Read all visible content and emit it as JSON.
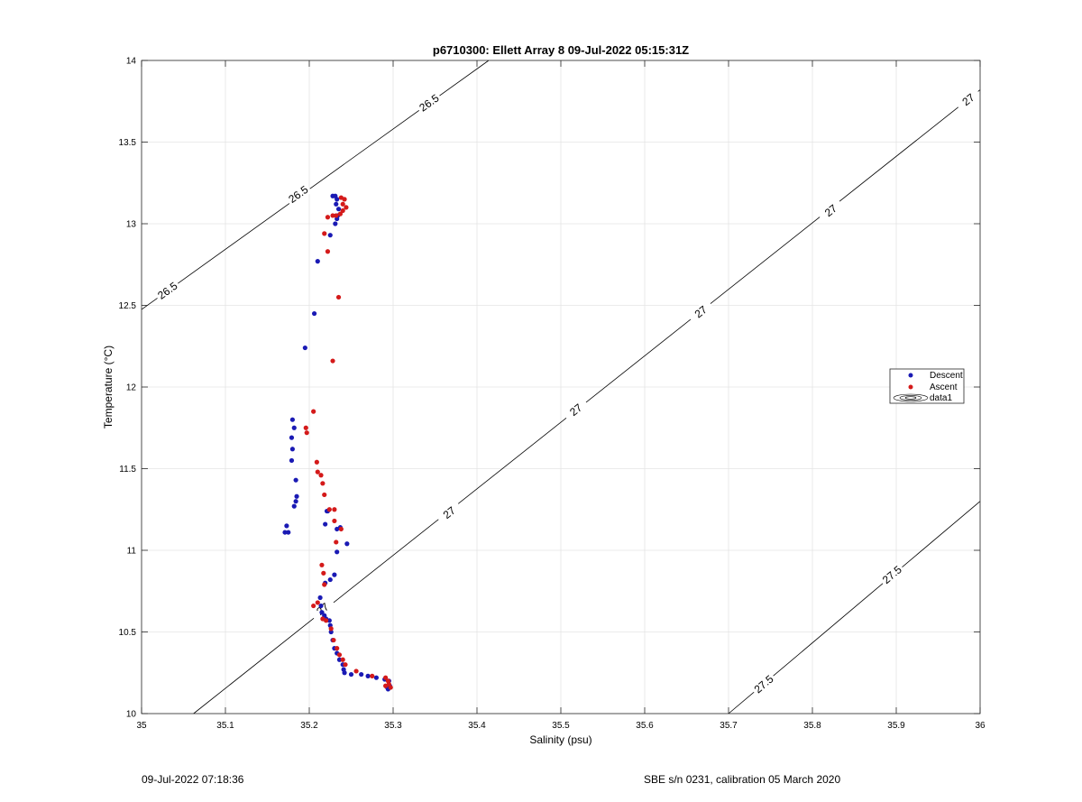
{
  "chart_data": {
    "type": "scatter",
    "title": "p6710300: Ellett Array 8 09-Jul-2022 05:15:31Z",
    "xlabel": "Salinity (psu)",
    "ylabel": "Temperature (°C)",
    "xlim": [
      35,
      36
    ],
    "ylim": [
      10,
      14
    ],
    "xticks": [
      "35",
      "35.1",
      "35.2",
      "35.3",
      "35.4",
      "35.5",
      "35.6",
      "35.7",
      "35.8",
      "35.9",
      "36"
    ],
    "yticks": [
      "10",
      "10.5",
      "11",
      "11.5",
      "12",
      "12.5",
      "13",
      "13.5",
      "14"
    ],
    "grid": true,
    "legend_position": "right",
    "legend": [
      "Descent",
      "Ascent",
      "data1"
    ],
    "colors": {
      "Descent": "#1a1ab4",
      "Ascent": "#d41a1a",
      "contour": "#000000",
      "grid": "#e4e4e4"
    },
    "series": [
      {
        "name": "Descent",
        "points": [
          [
            35.228,
            13.17
          ],
          [
            35.231,
            13.17
          ],
          [
            35.233,
            13.15
          ],
          [
            35.232,
            13.12
          ],
          [
            35.235,
            13.09
          ],
          [
            35.234,
            13.05
          ],
          [
            35.233,
            13.03
          ],
          [
            35.231,
            13.0
          ],
          [
            35.225,
            12.93
          ],
          [
            35.21,
            12.77
          ],
          [
            35.206,
            12.45
          ],
          [
            35.195,
            12.24
          ],
          [
            35.18,
            11.8
          ],
          [
            35.182,
            11.75
          ],
          [
            35.179,
            11.69
          ],
          [
            35.18,
            11.62
          ],
          [
            35.179,
            11.55
          ],
          [
            35.184,
            11.43
          ],
          [
            35.185,
            11.33
          ],
          [
            35.184,
            11.3
          ],
          [
            35.182,
            11.27
          ],
          [
            35.173,
            11.15
          ],
          [
            35.175,
            11.11
          ],
          [
            35.171,
            11.11
          ],
          [
            35.221,
            11.24
          ],
          [
            35.222,
            11.24
          ],
          [
            35.219,
            11.16
          ],
          [
            35.233,
            11.13
          ],
          [
            35.237,
            11.14
          ],
          [
            35.245,
            11.04
          ],
          [
            35.233,
            10.99
          ],
          [
            35.23,
            10.85
          ],
          [
            35.225,
            10.82
          ],
          [
            35.219,
            10.8
          ],
          [
            35.213,
            10.71
          ],
          [
            35.214,
            10.66
          ],
          [
            35.215,
            10.62
          ],
          [
            35.218,
            10.6
          ],
          [
            35.22,
            10.58
          ],
          [
            35.224,
            10.57
          ],
          [
            35.225,
            10.54
          ],
          [
            35.226,
            10.5
          ],
          [
            35.228,
            10.45
          ],
          [
            35.23,
            10.4
          ],
          [
            35.233,
            10.37
          ],
          [
            35.236,
            10.33
          ],
          [
            35.24,
            10.3
          ],
          [
            35.241,
            10.27
          ],
          [
            35.242,
            10.25
          ],
          [
            35.25,
            10.24
          ],
          [
            35.262,
            10.24
          ],
          [
            35.27,
            10.23
          ],
          [
            35.28,
            10.22
          ],
          [
            35.29,
            10.21
          ],
          [
            35.295,
            10.2
          ],
          [
            35.296,
            10.17
          ],
          [
            35.294,
            10.15
          ],
          [
            35.293,
            10.16
          ]
        ]
      },
      {
        "name": "Ascent",
        "points": [
          [
            35.238,
            13.16
          ],
          [
            35.242,
            13.15
          ],
          [
            35.24,
            13.12
          ],
          [
            35.244,
            13.1
          ],
          [
            35.24,
            13.08
          ],
          [
            35.237,
            13.06
          ],
          [
            35.232,
            13.05
          ],
          [
            35.228,
            13.05
          ],
          [
            35.222,
            13.04
          ],
          [
            35.218,
            12.94
          ],
          [
            35.222,
            12.83
          ],
          [
            35.235,
            12.55
          ],
          [
            35.228,
            12.16
          ],
          [
            35.205,
            11.85
          ],
          [
            35.196,
            11.75
          ],
          [
            35.197,
            11.72
          ],
          [
            35.209,
            11.54
          ],
          [
            35.21,
            11.48
          ],
          [
            35.214,
            11.46
          ],
          [
            35.216,
            11.41
          ],
          [
            35.218,
            11.34
          ],
          [
            35.224,
            11.25
          ],
          [
            35.23,
            11.25
          ],
          [
            35.23,
            11.18
          ],
          [
            35.238,
            11.13
          ],
          [
            35.232,
            11.05
          ],
          [
            35.215,
            10.91
          ],
          [
            35.217,
            10.86
          ],
          [
            35.218,
            10.79
          ],
          [
            35.21,
            10.68
          ],
          [
            35.205,
            10.66
          ],
          [
            35.216,
            10.58
          ],
          [
            35.22,
            10.57
          ],
          [
            35.226,
            10.52
          ],
          [
            35.229,
            10.45
          ],
          [
            35.233,
            10.4
          ],
          [
            35.236,
            10.36
          ],
          [
            35.24,
            10.33
          ],
          [
            35.243,
            10.3
          ],
          [
            35.256,
            10.26
          ],
          [
            35.275,
            10.23
          ],
          [
            35.291,
            10.22
          ],
          [
            35.294,
            10.2
          ],
          [
            35.295,
            10.18
          ],
          [
            35.291,
            10.17
          ],
          [
            35.297,
            10.16
          ]
        ]
      }
    ],
    "density_contours": [
      {
        "label": "26.5",
        "x0": 35.0,
        "y0": 12.475,
        "x1": 35.414,
        "y1": 14.0
      },
      {
        "label": "27",
        "x0": 35.062,
        "y0": 10.0,
        "x1": 36.0,
        "y1": 13.82
      },
      {
        "label": "27.5",
        "x0": 35.7,
        "y0": 10.0,
        "x1": 36.0,
        "y1": 11.3
      }
    ],
    "contour_labels": [
      {
        "text": "26.5",
        "x": 35.343,
        "y": 13.74
      },
      {
        "text": "26.5",
        "x": 35.187,
        "y": 13.18
      },
      {
        "text": "26.5",
        "x": 35.031,
        "y": 12.59
      },
      {
        "text": "27",
        "x": 35.986,
        "y": 13.76
      },
      {
        "text": "27",
        "x": 35.822,
        "y": 13.08
      },
      {
        "text": "27",
        "x": 35.667,
        "y": 12.46
      },
      {
        "text": "27",
        "x": 35.518,
        "y": 11.86
      },
      {
        "text": "27",
        "x": 35.367,
        "y": 11.23
      },
      {
        "text": "27",
        "x": 35.216,
        "y": 10.64
      },
      {
        "text": "27.5",
        "x": 35.895,
        "y": 10.85
      },
      {
        "text": "27.5",
        "x": 35.742,
        "y": 10.18
      }
    ]
  },
  "footer": {
    "timestamp": "09-Jul-2022 07:18:36",
    "calibration": "SBE s/n 0231, calibration 05 March 2020"
  }
}
